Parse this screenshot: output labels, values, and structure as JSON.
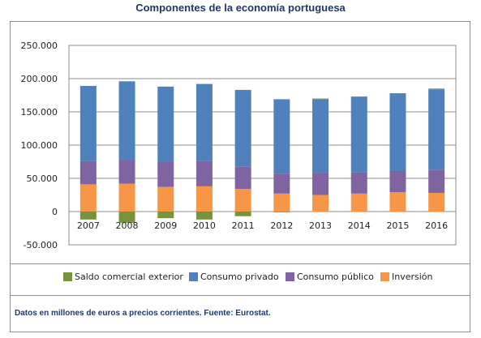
{
  "chart_data": {
    "type": "bar",
    "stacked": true,
    "title": "Componentes de la economía portuguesa",
    "categories": [
      "2007",
      "2008",
      "2009",
      "2010",
      "2011",
      "2012",
      "2013",
      "2014",
      "2015",
      "2016"
    ],
    "series": [
      {
        "name": "Saldo comercial exterior",
        "color": "#77933c",
        "values": [
          -12000,
          -17000,
          -10000,
          -12000,
          -7000,
          -1000,
          1000,
          0,
          0,
          1000
        ]
      },
      {
        "name": "Consumo privado",
        "color": "#4f81bd",
        "values": [
          113000,
          118000,
          113000,
          116000,
          115000,
          112000,
          111000,
          114000,
          117000,
          121000
        ]
      },
      {
        "name": "Consumo público",
        "color": "#8064a2",
        "values": [
          35000,
          36000,
          38000,
          38000,
          34000,
          30000,
          33000,
          32000,
          32000,
          35000
        ]
      },
      {
        "name": "Inversión",
        "color": "#f79646",
        "values": [
          41000,
          42000,
          37000,
          38000,
          34000,
          27000,
          25000,
          27000,
          29000,
          28000
        ]
      }
    ],
    "yticks": [
      "250.000",
      "200.000",
      "150.000",
      "100.000",
      "50.000",
      "0",
      "-50.000"
    ],
    "ylim": [
      -50000,
      250000
    ],
    "grid": true,
    "legend_position": "bottom"
  },
  "footnote": "Datos en millones de euros a precios corrientes. Fuente: Eurostat."
}
